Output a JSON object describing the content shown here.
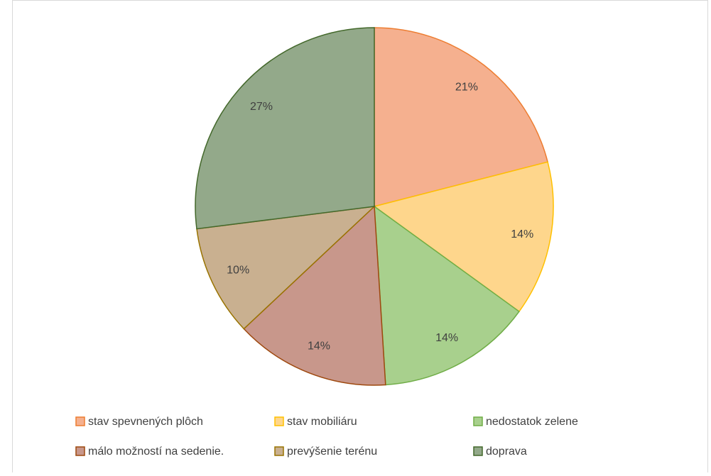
{
  "chart_data": {
    "type": "pie",
    "categories": [
      "stav spevnených plôch",
      "stav mobiliáru",
      "nedostatok zelene",
      "málo možností na sedenie.",
      "prevýšenie terénu",
      "doprava"
    ],
    "values": [
      21,
      14,
      14,
      14,
      10,
      27
    ],
    "value_labels": [
      "21%",
      "14%",
      "14%",
      "14%",
      "10%",
      "27%"
    ],
    "colors": [
      "#f5b08f",
      "#fed68c",
      "#a8d08d",
      "#c8978b",
      "#c9b090",
      "#93a98a"
    ],
    "stroke_colors": [
      "#ed7d31",
      "#ffc000",
      "#70ad47",
      "#9e480e",
      "#997300",
      "#43682b"
    ],
    "legend": "bottom"
  }
}
